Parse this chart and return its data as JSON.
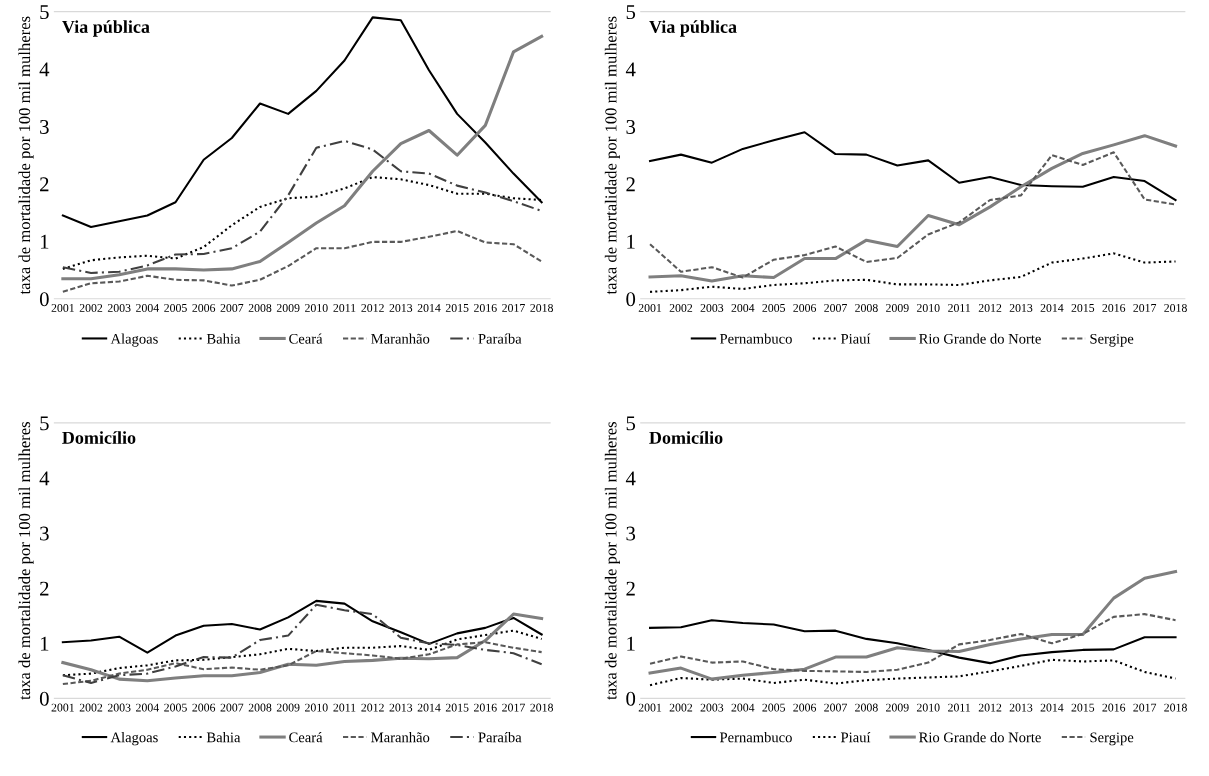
{
  "chart_data": [
    {
      "type": "line",
      "title": "Via pública",
      "ylabel": "taxa de mortalidade por 100 mil mulheres",
      "categories": [
        "2001",
        "2002",
        "2003",
        "2004",
        "2005",
        "2006",
        "2007",
        "2008",
        "2009",
        "2010",
        "2011",
        "2012",
        "2013",
        "2014",
        "2015",
        "2016",
        "2017",
        "2018"
      ],
      "ylim": [
        0,
        5
      ],
      "yticks": [
        0,
        1,
        2,
        3,
        4,
        5
      ],
      "grid": false,
      "legend": "bottom",
      "marker": "none",
      "series": [
        {
          "name": "Alagoas",
          "color": "#000000",
          "line_style": "solid",
          "values": [
            1.45,
            1.25,
            1.35,
            1.45,
            1.68,
            2.42,
            2.8,
            3.4,
            3.22,
            3.62,
            4.15,
            4.9,
            4.85,
            3.98,
            3.22,
            2.72,
            2.18,
            1.68
          ]
        },
        {
          "name": "Bahia",
          "color": "#000000",
          "line_style": "dotted",
          "values": [
            0.52,
            0.67,
            0.72,
            0.75,
            0.7,
            0.9,
            1.28,
            1.6,
            1.75,
            1.78,
            1.92,
            2.12,
            2.08,
            1.98,
            1.83,
            1.83,
            1.75,
            1.72
          ]
        },
        {
          "name": "Ceará",
          "color": "#7f7f7f",
          "line_style": "solid",
          "values": [
            0.35,
            0.35,
            0.42,
            0.52,
            0.52,
            0.5,
            0.52,
            0.65,
            0.98,
            1.32,
            1.62,
            2.22,
            2.7,
            2.93,
            2.5,
            3.02,
            4.3,
            4.57
          ]
        },
        {
          "name": "Maranhão",
          "color": "#595959",
          "line_style": "dashed",
          "values": [
            0.12,
            0.27,
            0.3,
            0.4,
            0.33,
            0.32,
            0.23,
            0.33,
            0.57,
            0.88,
            0.88,
            0.99,
            0.99,
            1.08,
            1.18,
            0.98,
            0.95,
            0.65
          ]
        },
        {
          "name": "Paraíba",
          "color": "#404040",
          "line_style": "dashdot",
          "values": [
            0.55,
            0.45,
            0.47,
            0.58,
            0.77,
            0.78,
            0.88,
            1.17,
            1.8,
            2.63,
            2.75,
            2.6,
            2.22,
            2.18,
            1.97,
            1.85,
            1.7,
            1.53
          ]
        }
      ]
    },
    {
      "type": "line",
      "title": "Via pública",
      "ylabel": "taxa de mortalidade por 100 mil mulheres",
      "categories": [
        "2001",
        "2002",
        "2003",
        "2004",
        "2005",
        "2006",
        "2007",
        "2008",
        "2009",
        "2010",
        "2011",
        "2012",
        "2013",
        "2014",
        "2015",
        "2016",
        "2017",
        "2018"
      ],
      "ylim": [
        0,
        5
      ],
      "yticks": [
        0,
        1,
        2,
        3,
        4,
        5
      ],
      "grid": false,
      "legend": "bottom",
      "marker": "none",
      "series": [
        {
          "name": "Pernambuco",
          "color": "#000000",
          "line_style": "solid",
          "values": [
            2.4,
            2.51,
            2.37,
            2.61,
            2.76,
            2.9,
            2.52,
            2.51,
            2.32,
            2.41,
            2.02,
            2.12,
            1.98,
            1.96,
            1.95,
            2.12,
            2.05,
            1.72
          ]
        },
        {
          "name": "Piauí",
          "color": "#000000",
          "line_style": "dotted",
          "values": [
            0.12,
            0.15,
            0.21,
            0.17,
            0.24,
            0.27,
            0.32,
            0.33,
            0.25,
            0.25,
            0.24,
            0.32,
            0.38,
            0.63,
            0.7,
            0.79,
            0.63,
            0.65
          ]
        },
        {
          "name": "Rio Grande do Norte",
          "color": "#7f7f7f",
          "line_style": "solid",
          "values": [
            0.38,
            0.4,
            0.31,
            0.4,
            0.37,
            0.7,
            0.7,
            1.02,
            0.91,
            1.45,
            1.29,
            1.6,
            1.95,
            2.27,
            2.53,
            2.68,
            2.84,
            2.66
          ]
        },
        {
          "name": "Sergipe",
          "color": "#595959",
          "line_style": "dashed",
          "values": [
            0.95,
            0.47,
            0.55,
            0.37,
            0.68,
            0.76,
            0.91,
            0.64,
            0.71,
            1.12,
            1.33,
            1.72,
            1.8,
            2.5,
            2.33,
            2.55,
            1.73,
            1.64
          ]
        }
      ]
    },
    {
      "type": "line",
      "title": "Domicílio",
      "ylabel": "taxa de mortalidade por 100 mil mulheres",
      "categories": [
        "2001",
        "2002",
        "2003",
        "2004",
        "2005",
        "2006",
        "2007",
        "2008",
        "2009",
        "2010",
        "2011",
        "2012",
        "2013",
        "2014",
        "2015",
        "2016",
        "2017",
        "2018"
      ],
      "ylim": [
        0,
        5
      ],
      "yticks": [
        0,
        1,
        2,
        3,
        4,
        5
      ],
      "grid": false,
      "legend": "bottom",
      "marker": "none",
      "series": [
        {
          "name": "Alagoas",
          "color": "#000000",
          "line_style": "solid",
          "values": [
            1.02,
            1.05,
            1.12,
            0.83,
            1.14,
            1.32,
            1.35,
            1.25,
            1.47,
            1.77,
            1.72,
            1.4,
            1.2,
            0.99,
            1.18,
            1.28,
            1.46,
            1.16
          ]
        },
        {
          "name": "Bahia",
          "color": "#000000",
          "line_style": "dotted",
          "values": [
            0.42,
            0.45,
            0.55,
            0.6,
            0.69,
            0.7,
            0.75,
            0.8,
            0.9,
            0.86,
            0.92,
            0.92,
            0.95,
            0.88,
            1.07,
            1.15,
            1.23,
            1.08
          ]
        },
        {
          "name": "Ceará",
          "color": "#7f7f7f",
          "line_style": "solid",
          "values": [
            0.65,
            0.52,
            0.35,
            0.32,
            0.37,
            0.41,
            0.41,
            0.47,
            0.62,
            0.6,
            0.67,
            0.69,
            0.73,
            0.72,
            0.74,
            1.05,
            1.53,
            1.45
          ]
        },
        {
          "name": "Maranhão",
          "color": "#595959",
          "line_style": "dashed",
          "values": [
            0.26,
            0.32,
            0.45,
            0.52,
            0.64,
            0.53,
            0.56,
            0.52,
            0.6,
            0.86,
            0.82,
            0.78,
            0.72,
            0.8,
            0.98,
            1.02,
            0.92,
            0.84
          ]
        },
        {
          "name": "Paraíba",
          "color": "#404040",
          "line_style": "dashdot",
          "values": [
            0.42,
            0.28,
            0.42,
            0.45,
            0.58,
            0.75,
            0.74,
            1.06,
            1.14,
            1.7,
            1.6,
            1.53,
            1.1,
            1.0,
            0.97,
            0.88,
            0.82,
            0.62
          ]
        }
      ]
    },
    {
      "type": "line",
      "title": "Domicílio",
      "ylabel": "taxa de mortalidade por 100 mil mulheres",
      "categories": [
        "2001",
        "2002",
        "2003",
        "2004",
        "2005",
        "2006",
        "2007",
        "2008",
        "2009",
        "2010",
        "2011",
        "2012",
        "2013",
        "2014",
        "2015",
        "2016",
        "2017",
        "2018"
      ],
      "ylim": [
        0,
        5
      ],
      "yticks": [
        0,
        1,
        2,
        3,
        4,
        5
      ],
      "grid": false,
      "legend": "bottom",
      "marker": "none",
      "series": [
        {
          "name": "Pernambuco",
          "color": "#000000",
          "line_style": "solid",
          "values": [
            1.28,
            1.29,
            1.42,
            1.37,
            1.34,
            1.22,
            1.23,
            1.08,
            1.0,
            0.88,
            0.74,
            0.64,
            0.78,
            0.84,
            0.88,
            0.89,
            1.11,
            1.11
          ]
        },
        {
          "name": "Piauí",
          "color": "#000000",
          "line_style": "dotted",
          "values": [
            0.24,
            0.37,
            0.34,
            0.36,
            0.28,
            0.34,
            0.27,
            0.33,
            0.36,
            0.38,
            0.4,
            0.49,
            0.59,
            0.7,
            0.67,
            0.69,
            0.48,
            0.36
          ]
        },
        {
          "name": "Rio Grande do Norte",
          "color": "#7f7f7f",
          "line_style": "solid",
          "values": [
            0.46,
            0.55,
            0.35,
            0.42,
            0.47,
            0.53,
            0.75,
            0.75,
            0.92,
            0.86,
            0.85,
            0.98,
            1.08,
            1.16,
            1.16,
            1.82,
            2.18,
            2.3
          ]
        },
        {
          "name": "Sergipe",
          "color": "#595959",
          "line_style": "dashed",
          "values": [
            0.63,
            0.76,
            0.65,
            0.67,
            0.53,
            0.5,
            0.49,
            0.48,
            0.52,
            0.65,
            0.98,
            1.06,
            1.17,
            1.0,
            1.17,
            1.48,
            1.53,
            1.42
          ]
        }
      ]
    }
  ]
}
